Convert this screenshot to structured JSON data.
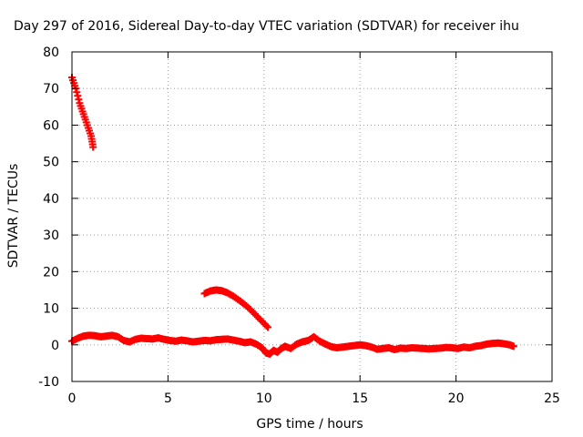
{
  "chart_data": {
    "type": "scatter",
    "title": "Day 297 of 2016, Sidereal Day-to-day VTEC variation (SDTVAR) for receiver ihu",
    "xlabel": "GPS time / hours",
    "ylabel": "SDTVAR / TECUs",
    "xlim": [
      0,
      25
    ],
    "ylim": [
      -10,
      80
    ],
    "x_ticks": [
      0,
      5,
      10,
      15,
      20,
      25
    ],
    "y_ticks": [
      -10,
      0,
      10,
      20,
      30,
      40,
      50,
      60,
      70,
      80
    ],
    "grid": true,
    "legend": "none",
    "marker": "plus",
    "series_color": "#ff0000",
    "series": [
      {
        "x": [
          0.0,
          0.2,
          0.4,
          0.6,
          0.8,
          1.0,
          1.1
        ],
        "y": [
          73,
          70,
          66,
          63,
          60,
          57,
          54
        ]
      },
      {
        "x": [
          6.9,
          7.2,
          7.5,
          7.8,
          8.1,
          8.4,
          8.7,
          9.0,
          9.3,
          9.6,
          9.9,
          10.2
        ],
        "y": [
          14,
          14.7,
          15,
          14.8,
          14.2,
          13.3,
          12.2,
          11,
          9.6,
          8.0,
          6.4,
          4.8
        ]
      },
      {
        "x": [
          0.0,
          0.3,
          0.6,
          0.9,
          1.2,
          1.5,
          1.8,
          2.1,
          2.4,
          2.7,
          3.0,
          3.3,
          3.6,
          3.9,
          4.2,
          4.5,
          4.8,
          5.1,
          5.4,
          5.7,
          6.0,
          6.3,
          6.6,
          6.9,
          7.2,
          7.5,
          7.8,
          8.1,
          8.4,
          8.7,
          9.0,
          9.3,
          9.6,
          9.9,
          10.1,
          10.3,
          10.5,
          10.7,
          10.9,
          11.1,
          11.4,
          11.7,
          12.0,
          12.3,
          12.6,
          12.9,
          13.2,
          13.5,
          13.8,
          14.1,
          14.4,
          14.7,
          15.0,
          15.3,
          15.6,
          15.9,
          16.2,
          16.5,
          16.8,
          17.1,
          17.4,
          17.7,
          18.0,
          18.3,
          18.6,
          18.9,
          19.2,
          19.5,
          19.8,
          20.1,
          20.4,
          20.7,
          21.0,
          21.3,
          21.6,
          21.9,
          22.2,
          22.5,
          22.8,
          23.0
        ],
        "y": [
          1,
          1.8,
          2.4,
          2.6,
          2.5,
          2.2,
          2.4,
          2.6,
          2.2,
          1.2,
          0.8,
          1.5,
          1.8,
          1.7,
          1.6,
          1.9,
          1.5,
          1.2,
          1.0,
          1.3,
          1.1,
          0.8,
          1.0,
          1.2,
          1.1,
          1.4,
          1.5,
          1.6,
          1.3,
          1.0,
          0.6,
          0.8,
          0.2,
          -0.8,
          -2.2,
          -2.5,
          -1.5,
          -2.0,
          -1.0,
          -0.4,
          -1.0,
          0.2,
          0.8,
          1.2,
          2.2,
          1.0,
          0.2,
          -0.5,
          -0.8,
          -0.6,
          -0.4,
          -0.2,
          0.0,
          -0.2,
          -0.6,
          -1.2,
          -1.0,
          -0.8,
          -1.3,
          -0.9,
          -1.0,
          -0.8,
          -0.9,
          -1.0,
          -1.1,
          -1.0,
          -0.9,
          -0.7,
          -0.8,
          -1.0,
          -0.6,
          -0.8,
          -0.4,
          -0.2,
          0.2,
          0.4,
          0.5,
          0.3,
          0.0,
          -0.4
        ]
      }
    ]
  }
}
